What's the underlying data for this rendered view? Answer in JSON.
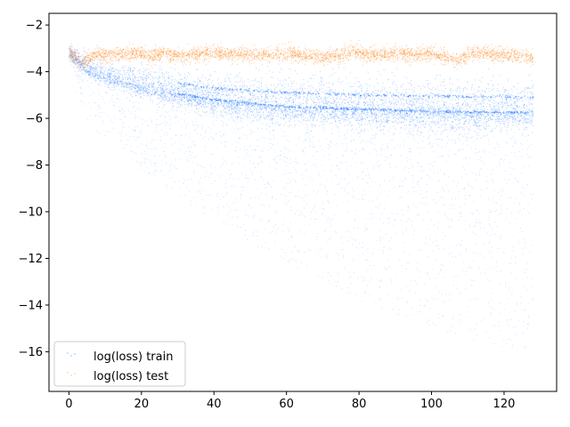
{
  "chart_data": {
    "type": "scatter",
    "title": "",
    "xlabel": "",
    "ylabel": "",
    "xlim": [
      -5.5,
      134.5
    ],
    "ylim": [
      -17.7,
      -1.5
    ],
    "x_ticks": [
      0,
      20,
      40,
      60,
      80,
      100,
      120
    ],
    "y_ticks": [
      -2,
      -4,
      -6,
      -8,
      -10,
      -12,
      -14,
      -16
    ],
    "x_tick_labels": [
      "0",
      "20",
      "40",
      "60",
      "80",
      "100",
      "120"
    ],
    "y_tick_labels": [
      "−2",
      "−4",
      "−6",
      "−8",
      "−10",
      "−12",
      "−14",
      "−16"
    ],
    "legend_position": "lower-left",
    "series": [
      {
        "name": "log(loss) train",
        "color": "#1f77ff",
        "x_range": [
          0,
          128
        ],
        "dense_band": {
          "x": [
            0,
            5,
            10,
            20,
            30,
            40,
            60,
            80,
            100,
            128
          ],
          "y_center": [
            -3.2,
            -3.9,
            -4.2,
            -4.6,
            -4.95,
            -5.2,
            -5.5,
            -5.6,
            -5.7,
            -5.75
          ],
          "y_upper": [
            -3.0,
            -3.6,
            -3.9,
            -4.2,
            -4.5,
            -4.7,
            -4.9,
            -5.0,
            -5.05,
            -5.1
          ]
        },
        "sparse_spread": {
          "x": [
            0,
            5,
            10,
            20,
            30,
            40,
            60,
            80,
            100,
            128
          ],
          "y_lower": [
            -4.0,
            -6.0,
            -7.0,
            -8.2,
            -9.3,
            -10.5,
            -12.2,
            -13.8,
            -15.0,
            -16.2
          ]
        },
        "description_values": "train log-loss decreases from about -3 to a dense floor near -5.75 with a secondary line near -5.1; sparse points reach about -16 late in training"
      },
      {
        "name": "log(loss) test",
        "color": "#ff7f0e",
        "x_range": [
          0,
          128
        ],
        "y_center": [
          [
            0,
            -3.2
          ],
          [
            2,
            -3.5
          ],
          [
            4,
            -3.6
          ],
          [
            6,
            -3.4
          ],
          [
            8,
            -3.2
          ],
          [
            10,
            -3.3
          ],
          [
            15,
            -3.25
          ],
          [
            20,
            -3.2
          ],
          [
            23,
            -3.4
          ],
          [
            25,
            -3.2
          ],
          [
            30,
            -3.3
          ],
          [
            40,
            -3.2
          ],
          [
            50,
            -3.3
          ],
          [
            60,
            -3.2
          ],
          [
            70,
            -3.4
          ],
          [
            75,
            -3.3
          ],
          [
            78,
            -3.1
          ],
          [
            82,
            -3.3
          ],
          [
            90,
            -3.2
          ],
          [
            95,
            -3.3
          ],
          [
            100,
            -3.2
          ],
          [
            107,
            -3.5
          ],
          [
            110,
            -3.3
          ],
          [
            115,
            -3.2
          ],
          [
            120,
            -3.3
          ],
          [
            128,
            -3.4
          ]
        ],
        "band_width": 0.35
      }
    ]
  }
}
